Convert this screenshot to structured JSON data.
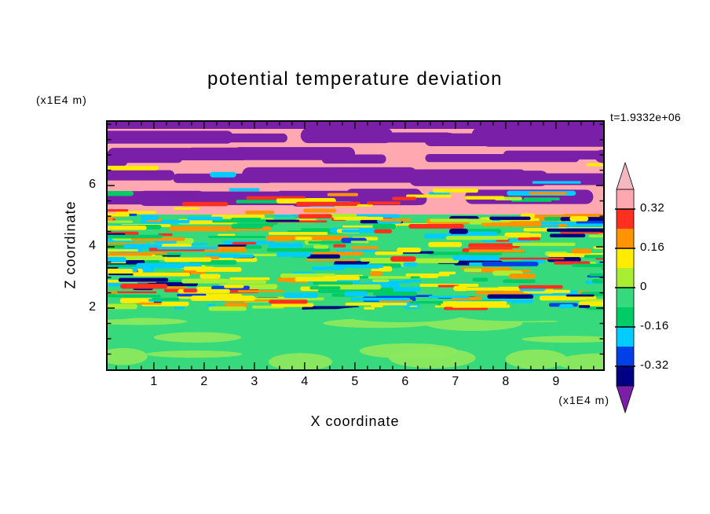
{
  "title": "potential temperature deviation",
  "timestamp": "t=1.9332e+06",
  "axes": {
    "x_label": "X coordinate",
    "y_label": "Z coordinate",
    "x_unit": "(x1E4 m)",
    "y_unit": "(x1E4 m)",
    "x_ticks": [
      {
        "v": 1,
        "label": "1"
      },
      {
        "v": 2,
        "label": "2"
      },
      {
        "v": 3,
        "label": "3"
      },
      {
        "v": 4,
        "label": "4"
      },
      {
        "v": 5,
        "label": "5"
      },
      {
        "v": 6,
        "label": "6"
      },
      {
        "v": 7,
        "label": "7"
      },
      {
        "v": 8,
        "label": "8"
      },
      {
        "v": 9,
        "label": "9"
      }
    ],
    "y_ticks": [
      {
        "v": 6,
        "label": "6"
      },
      {
        "v": 4,
        "label": "4"
      },
      {
        "v": 2,
        "label": "2"
      }
    ]
  },
  "colorbar": {
    "labels": [
      "0.32",
      "0.16",
      "0",
      "-0.16",
      "-0.32"
    ],
    "arrow_top": "pinklight",
    "arrow_bottom": "purple",
    "bands": [
      {
        "from": 0.32,
        "to": 0.4,
        "color": "pink"
      },
      {
        "from": 0.24,
        "to": 0.32,
        "color": "red"
      },
      {
        "from": 0.16,
        "to": 0.24,
        "color": "orange"
      },
      {
        "from": 0.08,
        "to": 0.16,
        "color": "yellow"
      },
      {
        "from": 0.0,
        "to": 0.08,
        "color": "greenyellow"
      },
      {
        "from": -0.08,
        "to": 0.0,
        "color": "green"
      },
      {
        "from": -0.16,
        "to": -0.08,
        "color": "green2"
      },
      {
        "from": -0.24,
        "to": -0.16,
        "color": "cyan"
      },
      {
        "from": -0.32,
        "to": -0.24,
        "color": "blue"
      },
      {
        "from": -0.4,
        "to": -0.32,
        "color": "navy"
      }
    ]
  },
  "chart_data": {
    "type": "heatmap",
    "title": "potential temperature deviation",
    "xlabel": "X coordinate (x1E4 m)",
    "ylabel": "Z coordinate (x1E4 m)",
    "time_annotation": "t=1.9332e+06",
    "axes": {
      "x": {
        "min": 0.08,
        "max": 9.94,
        "minor_step": 0.25
      },
      "z": {
        "min": 0,
        "max": 8.08,
        "minor_step": 0.5
      }
    },
    "contour_levels": [
      -0.4,
      -0.32,
      -0.24,
      -0.16,
      -0.08,
      0,
      0.08,
      0.16,
      0.24,
      0.32,
      0.4
    ],
    "colorbar_label_values": [
      0.32,
      0.16,
      0,
      -0.16,
      -0.32
    ],
    "palette_map": {
      "purple": "#7a1fa8",
      "pinklight": "#f5b8c0",
      "pink": "#ffa8b0",
      "red": "#ff3020",
      "orange": "#ff9400",
      "yellow": "#ffec00",
      "greenyellow": "#aaee33",
      "green": "#36d97b",
      "green2": "#00cc66",
      "cyan": "#00ccff",
      "blue": "#0040e8",
      "navy": "#000085",
      "lightgreen": "#8ce95e"
    },
    "field_regions": [
      {
        "z_range": [
          5.4,
          8.08
        ],
        "description": "large-amplitude wave layer: alternating horizontal wavy bands of strong positive (pink, >0.32) and strong negative (purple, <-0.40) deviation; thin red/orange and cyan filaments near its base",
        "dominant_colors": [
          "pink",
          "purple",
          "red",
          "cyan"
        ]
      },
      {
        "z_range": [
          2.0,
          5.4
        ],
        "description": "turbulent layer: dense fine horizontal streaks spanning the full value range",
        "dominant_colors": [
          "yellow",
          "orange",
          "red",
          "greenyellow",
          "green",
          "cyan",
          "navy"
        ]
      },
      {
        "z_range": [
          0,
          2.0
        ],
        "description": "quiescent near-surface layer, nearly uniform weak-positive green with lighter green patches",
        "dominant_colors": [
          "green",
          "lightgreen"
        ]
      }
    ],
    "render": {
      "seed": 20250607,
      "wave_bottom": 118,
      "turb_bottom": 240,
      "purple_band_centers": [
        20,
        44,
        70,
        96
      ],
      "purple_capsules": 46,
      "wave_wisps": 16,
      "wave_warm_streaks": 22,
      "turb_streaks": 380,
      "calm_blobs": 13,
      "boundary_blobs": 10,
      "specks": 8,
      "turb_weights": [
        [
          "yellow",
          0.19
        ],
        [
          "greenyellow",
          0.13
        ],
        [
          "orange",
          0.15
        ],
        [
          "red",
          0.07
        ],
        [
          "cyan",
          0.16
        ],
        [
          "navy",
          0.09
        ],
        [
          "blue",
          0.03
        ],
        [
          "green2",
          0.18
        ]
      ],
      "wisp_weights": [
        [
          "cyan",
          0.4
        ],
        [
          "green2",
          0.25
        ],
        [
          "greenyellow",
          0.2
        ],
        [
          "yellow",
          0.15
        ]
      ],
      "warm_weights": [
        [
          "red",
          0.4
        ],
        [
          "orange",
          0.35
        ],
        [
          "yellow",
          0.25
        ]
      ],
      "speck_weights": [
        [
          "cyan",
          0.4
        ],
        [
          "navy",
          0.3
        ],
        [
          "yellow",
          0.3
        ]
      ]
    }
  }
}
